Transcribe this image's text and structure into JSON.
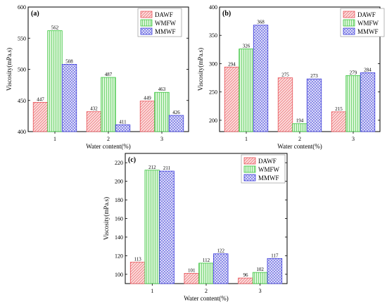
{
  "patterns": {
    "DAWF": {
      "stroke": "#e8545a",
      "fill": "#fbdada"
    },
    "WMFW": {
      "stroke": "#39c43d",
      "fill": "#d9f5d6"
    },
    "MMWF": {
      "stroke": "#3b3bd9",
      "fill": "#dcdcf8"
    }
  },
  "chart_data": [
    {
      "panel": "(a)",
      "type": "bar",
      "xlabel": "Water content(%)",
      "ylabel": "Viscosity(mPa.s)",
      "categories": [
        "1",
        "2",
        "3"
      ],
      "ylim": [
        400,
        600
      ],
      "yticks": [
        "400",
        "450",
        "500",
        "550",
        "600"
      ],
      "legend_position": "top-right",
      "series": [
        {
          "name": "DAWF",
          "values": [
            447,
            432,
            449
          ],
          "labels": [
            "447",
            "432",
            "449"
          ]
        },
        {
          "name": "WMFW",
          "values": [
            562,
            487,
            463
          ],
          "labels": [
            "562",
            "487",
            "463"
          ]
        },
        {
          "name": "MMWF",
          "values": [
            508,
            411,
            426
          ],
          "labels": [
            "508",
            "411",
            "426"
          ]
        }
      ]
    },
    {
      "panel": "(b)",
      "type": "bar",
      "xlabel": "Water content(%)",
      "ylabel": "Viscosity(mPa.s)",
      "categories": [
        "1",
        "2",
        "3"
      ],
      "ylim": [
        180,
        400
      ],
      "yticks": [
        "200",
        "250",
        "300",
        "350",
        "400"
      ],
      "legend_position": "top-right",
      "series": [
        {
          "name": "DAWF",
          "values": [
            294,
            275,
            215
          ],
          "labels": [
            "294",
            "275",
            "215"
          ]
        },
        {
          "name": "WMFW",
          "values": [
            326,
            194,
            279
          ],
          "labels": [
            "326",
            "194",
            "279"
          ]
        },
        {
          "name": "MMWF",
          "values": [
            368,
            273,
            284
          ],
          "labels": [
            "368",
            "273",
            "284"
          ]
        }
      ]
    },
    {
      "panel": "(c)",
      "type": "bar",
      "xlabel": "Water content(%)",
      "ylabel": "Viscosity(mPa.s)",
      "categories": [
        "1",
        "2",
        "3"
      ],
      "ylim": [
        90,
        230
      ],
      "yticks": [
        "100",
        "120",
        "140",
        "160",
        "180",
        "200",
        "220"
      ],
      "legend_position": "top-right",
      "series": [
        {
          "name": "DAWF",
          "values": [
            113,
            101,
            96
          ],
          "labels": [
            "113",
            "101",
            "96"
          ]
        },
        {
          "name": "WMFW",
          "values": [
            212,
            112,
            102
          ],
          "labels": [
            "212",
            "112",
            "102"
          ]
        },
        {
          "name": "MMWF",
          "values": [
            211,
            122,
            117
          ],
          "labels": [
            "211",
            "122",
            "117"
          ]
        }
      ]
    }
  ]
}
